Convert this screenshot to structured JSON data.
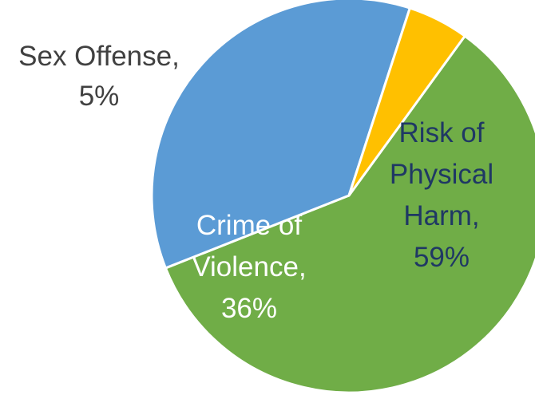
{
  "chart_data": {
    "type": "pie",
    "title": "",
    "slices": [
      {
        "name": "Risk of Physical Harm",
        "value": 59,
        "label_lines": [
          "Risk of",
          "Physical",
          "Harm,",
          "59%"
        ],
        "color": "#70AD47",
        "label_color": "#1F3864"
      },
      {
        "name": "Crime of Violence",
        "value": 36,
        "label_lines": [
          "Crime of",
          "Violence,",
          "36%"
        ],
        "color": "#5B9BD5",
        "label_color": "#FFFFFF"
      },
      {
        "name": "Sex Offense",
        "value": 5,
        "label_lines": [
          "Sex Offense,",
          "5%"
        ],
        "color": "#FFC000",
        "label_color": "#404040"
      }
    ],
    "legend": "none",
    "start_angle_deg": 36,
    "direction": "clockwise"
  }
}
